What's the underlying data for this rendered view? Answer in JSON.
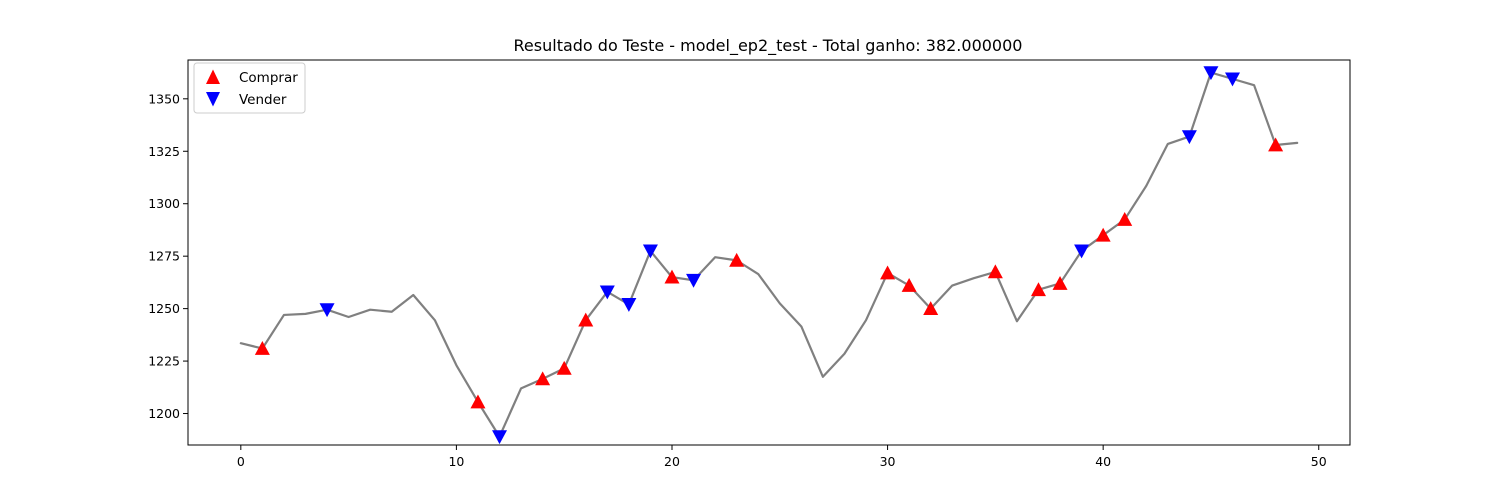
{
  "chart_data": {
    "type": "line",
    "title": "Resultado do Teste - model_ep2_test - Total ganho: 382.000000",
    "xlabel": "",
    "ylabel": "",
    "xlim": [
      -2.45,
      51.45
    ],
    "ylim": [
      1185,
      1368.5
    ],
    "xticks": [
      0,
      10,
      20,
      30,
      40,
      50
    ],
    "yticks": [
      1200,
      1225,
      1250,
      1275,
      1300,
      1325,
      1350
    ],
    "grid": false,
    "legend_position": "top-left",
    "series": [
      {
        "kind": "line",
        "color": "#808080",
        "x": [
          0,
          1,
          2,
          3,
          4,
          5,
          6,
          7,
          8,
          9,
          10,
          11,
          12,
          13,
          14,
          15,
          16,
          17,
          18,
          19,
          20,
          21,
          22,
          23,
          24,
          25,
          26,
          27,
          28,
          29,
          30,
          31,
          32,
          33,
          34,
          35,
          36,
          37,
          38,
          39,
          40,
          41,
          42,
          43,
          44,
          45,
          46,
          47,
          48,
          49
        ],
        "y": [
          1233.5,
          1231.0,
          1247.0,
          1247.5,
          1249.5,
          1246.0,
          1249.5,
          1248.5,
          1256.5,
          1244.5,
          1223.0,
          1205.5,
          1189.0,
          1212.0,
          1216.5,
          1221.5,
          1244.5,
          1258.0,
          1252.0,
          1277.5,
          1265.0,
          1263.5,
          1274.5,
          1273.0,
          1266.5,
          1252.5,
          1241.5,
          1217.5,
          1228.5,
          1244.5,
          1267.0,
          1261.0,
          1250.0,
          1261.0,
          1264.5,
          1267.5,
          1244.0,
          1259.0,
          1262.0,
          1277.5,
          1285.0,
          1292.5,
          1308.5,
          1328.5,
          1332.0,
          1362.5,
          1359.5,
          1356.5,
          1328.0,
          1329.0
        ]
      },
      {
        "name": "Comprar",
        "kind": "marker",
        "marker": "triangle-up",
        "color": "#ff0000",
        "x": [
          1,
          11,
          14,
          15,
          16,
          20,
          23,
          30,
          31,
          32,
          35,
          37,
          38,
          40,
          41,
          48
        ],
        "y": [
          1231.0,
          1205.5,
          1216.5,
          1221.5,
          1244.5,
          1265.0,
          1273.0,
          1267.0,
          1261.0,
          1250.0,
          1267.5,
          1259.0,
          1262.0,
          1285.0,
          1292.5,
          1328.0
        ]
      },
      {
        "name": "Vender",
        "kind": "marker",
        "marker": "triangle-down",
        "color": "#0000ff",
        "x": [
          4,
          12,
          17,
          18,
          19,
          21,
          39,
          44,
          45,
          46
        ],
        "y": [
          1249.5,
          1189.0,
          1258.0,
          1252.0,
          1277.5,
          1263.5,
          1277.5,
          1332.0,
          1362.5,
          1359.5
        ]
      }
    ]
  }
}
